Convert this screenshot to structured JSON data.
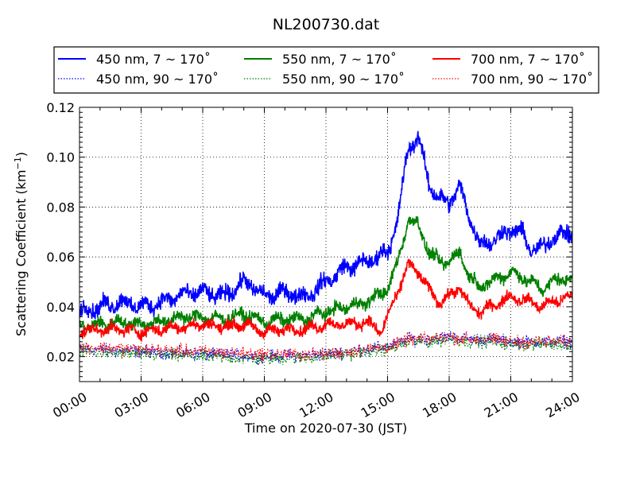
{
  "chart_data": {
    "type": "line",
    "title": "NL200730.dat",
    "xlabel": "Time on 2020-07-30 (JST)",
    "ylabel": "Scattering Coefficient (km",
    "ylabel_exponent": "−1",
    "ylabel_close": ")",
    "xlim": [
      0,
      24
    ],
    "ylim": [
      0.01,
      0.12
    ],
    "grid": true,
    "legend_position": "top",
    "x_tick_labels": [
      "00:00",
      "03:00",
      "06:00",
      "09:00",
      "12:00",
      "15:00",
      "18:00",
      "21:00",
      "24:00"
    ],
    "y_ticks": [
      0.02,
      0.04,
      0.06,
      0.08,
      0.1,
      0.12
    ],
    "y_tick_labels": [
      "0.02",
      "0.04",
      "0.06",
      "0.08",
      "0.10",
      "0.12"
    ],
    "series": [
      {
        "name": "450 nm, 7 ~ 170˚",
        "color": "#0000ff",
        "style": "solid",
        "x": [
          0,
          1,
          2,
          3,
          4,
          5,
          6,
          7,
          8,
          8.5,
          9,
          10,
          11,
          12,
          13,
          14,
          15,
          15.5,
          16,
          16.5,
          17,
          17.5,
          18,
          18.5,
          19,
          19.5,
          20,
          21,
          21.5,
          22,
          22.5,
          23,
          24
        ],
        "y": [
          0.038,
          0.04,
          0.042,
          0.04,
          0.042,
          0.045,
          0.046,
          0.044,
          0.05,
          0.048,
          0.044,
          0.046,
          0.044,
          0.05,
          0.056,
          0.058,
          0.062,
          0.075,
          0.104,
          0.108,
          0.09,
          0.083,
          0.082,
          0.088,
          0.076,
          0.065,
          0.066,
          0.071,
          0.07,
          0.063,
          0.063,
          0.068,
          0.07
        ],
        "noise": 0.0028
      },
      {
        "name": "450 nm, 90 ~ 170˚",
        "color": "#0000ff",
        "style": "dotted",
        "x": [
          0,
          3,
          6,
          9,
          12,
          14,
          15,
          15.5,
          16,
          17,
          18,
          19,
          20,
          21,
          22,
          23,
          24
        ],
        "y": [
          0.023,
          0.022,
          0.021,
          0.02,
          0.021,
          0.023,
          0.024,
          0.025,
          0.027,
          0.027,
          0.028,
          0.027,
          0.027,
          0.026,
          0.026,
          0.026,
          0.026
        ],
        "noise": 0.0022
      },
      {
        "name": "550 nm, 7 ~ 170˚",
        "color": "#008000",
        "style": "solid",
        "x": [
          0,
          1,
          2,
          3,
          4,
          5,
          6,
          7,
          8,
          9,
          10,
          11,
          12,
          13,
          14,
          15,
          15.5,
          16,
          16.5,
          17,
          17.5,
          18,
          18.5,
          19,
          19.5,
          20,
          21,
          22,
          22.5,
          23,
          24
        ],
        "y": [
          0.032,
          0.033,
          0.034,
          0.033,
          0.034,
          0.036,
          0.036,
          0.035,
          0.037,
          0.034,
          0.035,
          0.035,
          0.038,
          0.04,
          0.042,
          0.047,
          0.058,
          0.075,
          0.073,
          0.062,
          0.058,
          0.058,
          0.062,
          0.052,
          0.048,
          0.05,
          0.054,
          0.05,
          0.047,
          0.05,
          0.052
        ],
        "noise": 0.0022
      },
      {
        "name": "550 nm, 90 ~ 170˚",
        "color": "#008000",
        "style": "dotted",
        "x": [
          0,
          3,
          6,
          9,
          12,
          14,
          15,
          15.5,
          16,
          17,
          18,
          19,
          20,
          21,
          22,
          23,
          24
        ],
        "y": [
          0.022,
          0.021,
          0.02,
          0.019,
          0.02,
          0.022,
          0.023,
          0.024,
          0.026,
          0.026,
          0.027,
          0.026,
          0.026,
          0.025,
          0.025,
          0.025,
          0.025
        ],
        "noise": 0.0022
      },
      {
        "name": "700 nm, 7 ~ 170˚",
        "color": "#ff0000",
        "style": "solid",
        "x": [
          0,
          1,
          2,
          3,
          4,
          5,
          6,
          7,
          8,
          9,
          10,
          11,
          12,
          13,
          14,
          14.7,
          15,
          15.5,
          16,
          16.5,
          17,
          17.5,
          18,
          18.5,
          19,
          19.5,
          20,
          21,
          22,
          22.5,
          23,
          24
        ],
        "y": [
          0.03,
          0.031,
          0.031,
          0.03,
          0.031,
          0.032,
          0.033,
          0.032,
          0.033,
          0.03,
          0.031,
          0.031,
          0.033,
          0.033,
          0.034,
          0.03,
          0.036,
          0.046,
          0.057,
          0.054,
          0.047,
          0.042,
          0.044,
          0.048,
          0.04,
          0.038,
          0.04,
          0.044,
          0.042,
          0.04,
          0.042,
          0.044
        ],
        "noise": 0.0019
      },
      {
        "name": "700 nm, 90 ~ 170˚",
        "color": "#ff0000",
        "style": "dotted",
        "x": [
          0,
          3,
          6,
          9,
          12,
          14,
          15,
          15.5,
          16,
          17,
          18,
          19,
          20,
          21,
          22,
          23,
          24
        ],
        "y": [
          0.024,
          0.023,
          0.022,
          0.021,
          0.021,
          0.023,
          0.024,
          0.025,
          0.027,
          0.027,
          0.028,
          0.027,
          0.027,
          0.026,
          0.026,
          0.026,
          0.026
        ],
        "noise": 0.0022
      }
    ]
  }
}
